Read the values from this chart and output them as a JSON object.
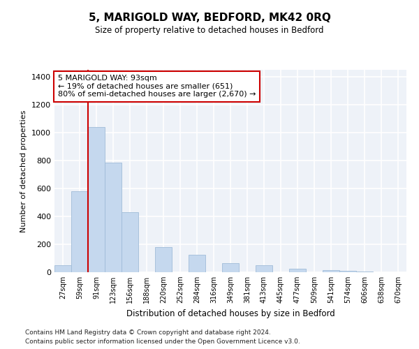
{
  "title": "5, MARIGOLD WAY, BEDFORD, MK42 0RQ",
  "subtitle": "Size of property relative to detached houses in Bedford",
  "xlabel": "Distribution of detached houses by size in Bedford",
  "ylabel": "Number of detached properties",
  "bar_color": "#c5d8ee",
  "bar_edge_color": "#a0bcd8",
  "bg_color": "#eef2f8",
  "grid_color": "#ffffff",
  "annotation_line1": "5 MARIGOLD WAY: 93sqm",
  "annotation_line2": "← 19% of detached houses are smaller (651)",
  "annotation_line3": "80% of semi-detached houses are larger (2,670) →",
  "vline_color": "#cc0000",
  "vline_bar_index": 2,
  "categories": [
    "27sqm",
    "59sqm",
    "91sqm",
    "123sqm",
    "156sqm",
    "188sqm",
    "220sqm",
    "252sqm",
    "284sqm",
    "316sqm",
    "349sqm",
    "381sqm",
    "413sqm",
    "445sqm",
    "477sqm",
    "509sqm",
    "541sqm",
    "574sqm",
    "606sqm",
    "638sqm",
    "670sqm"
  ],
  "values": [
    50,
    578,
    1040,
    785,
    430,
    0,
    180,
    0,
    125,
    0,
    65,
    0,
    50,
    0,
    25,
    0,
    15,
    10,
    5,
    2,
    1
  ],
  "ylim_max": 1450,
  "yticks": [
    0,
    200,
    400,
    600,
    800,
    1000,
    1200,
    1400
  ],
  "footer1": "Contains HM Land Registry data © Crown copyright and database right 2024.",
  "footer2": "Contains public sector information licensed under the Open Government Licence v3.0."
}
